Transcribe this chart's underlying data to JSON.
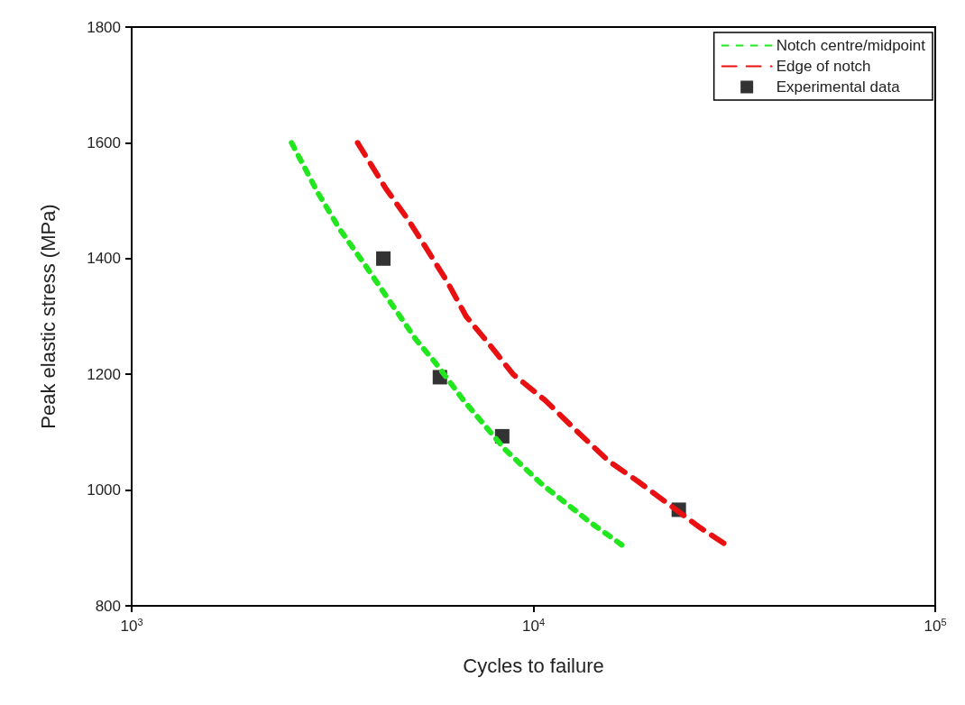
{
  "chart_data": {
    "type": "line",
    "xlabel": "Cycles to failure",
    "ylabel": "Peak elastic stress (MPa)",
    "log": "x",
    "xlim": [
      1000,
      100000
    ],
    "xticks": [
      {
        "value": 1000,
        "label": "10$^{3}$"
      },
      {
        "value": 10000,
        "label": "10$^{4}$"
      },
      {
        "value": 100000,
        "label": "10$^{5}$"
      }
    ],
    "ylim": [
      800,
      1800
    ],
    "yticks": [
      800,
      1000,
      1200,
      1400,
      1600,
      1800
    ],
    "grid": false,
    "legend": "top right",
    "series": [
      {
        "name": "Notch centre/midpoint",
        "type": "line",
        "color": "#22e61e",
        "line_style": "dotted",
        "marker": "none",
        "x": [
          2500,
          2900,
          3300,
          3800,
          4400,
          5100,
          5700,
          6700,
          8500,
          10500,
          13800,
          17000
        ],
        "values": [
          1600,
          1515,
          1450,
          1390,
          1325,
          1260,
          1220,
          1155,
          1070,
          1010,
          945,
          900
        ]
      },
      {
        "name": "Edge of notch",
        "type": "line",
        "color": "#e81010",
        "line_style": "dashed",
        "marker": "none",
        "x": [
          3650,
          4300,
          4900,
          5500,
          6100,
          6800,
          7700,
          8900,
          10700,
          12900,
          15400,
          18200,
          26000,
          31000
        ],
        "values": [
          1600,
          1520,
          1465,
          1410,
          1360,
          1300,
          1255,
          1200,
          1155,
          1100,
          1050,
          1015,
          935,
          900
        ]
      },
      {
        "name": "Experimental data",
        "type": "scatter",
        "color": "#000000",
        "marker": "square",
        "x": [
          4230,
          5850,
          8360,
          23000
        ],
        "values": [
          1400,
          1195,
          1093,
          966
        ]
      }
    ]
  }
}
